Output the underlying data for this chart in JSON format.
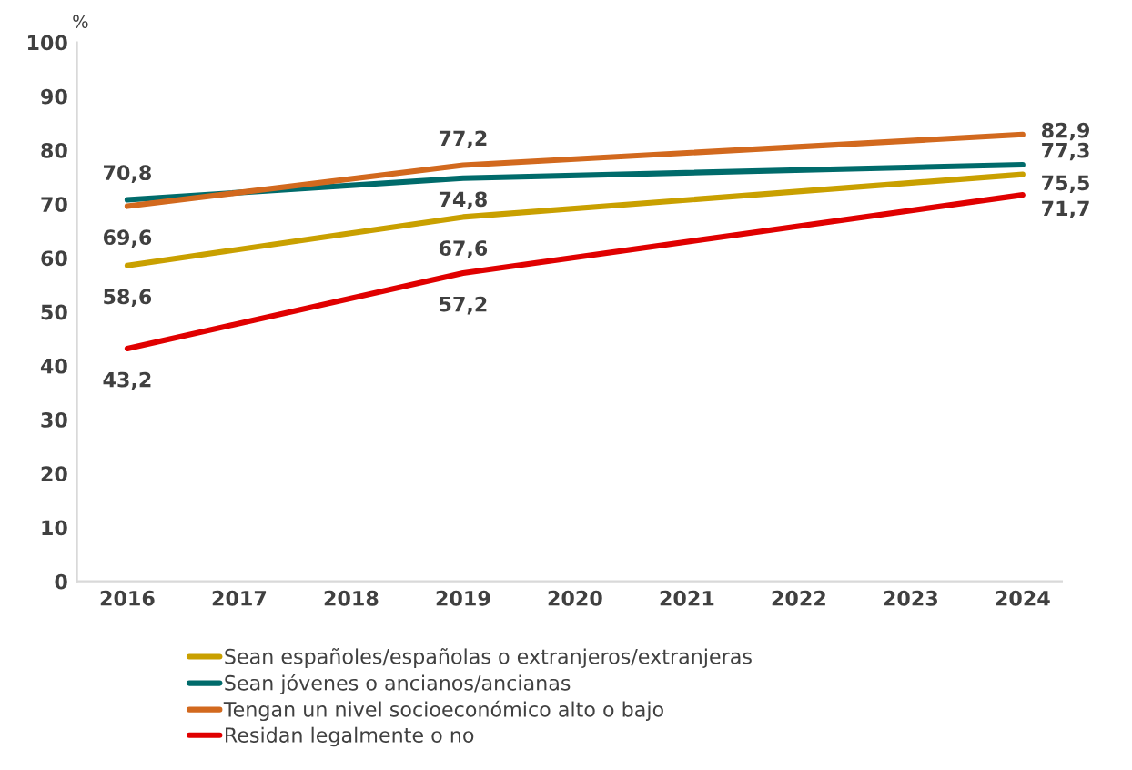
{
  "chart_data": {
    "type": "line",
    "ylabel": "%",
    "x": [
      2016,
      2019,
      2024
    ],
    "xlim": [
      2015.55,
      2024.35
    ],
    "xticks": [
      2016,
      2017,
      2018,
      2019,
      2020,
      2021,
      2022,
      2023,
      2024
    ],
    "ylim": [
      0,
      100
    ],
    "yticks": [
      0,
      10,
      20,
      30,
      40,
      50,
      60,
      70,
      80,
      90,
      100
    ],
    "grid": false,
    "legend": "bottom",
    "marker": "none",
    "line_style": "solid",
    "series": [
      {
        "name": "Sean españoles/españolas o extranjeros/extranjeras",
        "color": "#c9a000",
        "values": [
          58.6,
          67.6,
          75.5
        ],
        "value_labels": [
          "58,6",
          "67,6",
          "75,5"
        ]
      },
      {
        "name": "Sean jóvenes o ancianos/ancianas",
        "color": "#006b6b",
        "values": [
          70.8,
          74.8,
          77.3
        ],
        "value_labels": [
          "70,8",
          "74,8",
          "77,3"
        ]
      },
      {
        "name": "Tengan un nivel socioeconómico alto o bajo",
        "color": "#d2691e",
        "values": [
          69.6,
          77.2,
          82.9
        ],
        "value_labels": [
          "69,6",
          "77,2",
          "82,9"
        ]
      },
      {
        "name": "Residan legalmente o no",
        "color": "#e00000",
        "values": [
          43.2,
          57.2,
          71.7
        ],
        "value_labels": [
          "43,2",
          "57,2",
          "71,7"
        ]
      }
    ]
  }
}
